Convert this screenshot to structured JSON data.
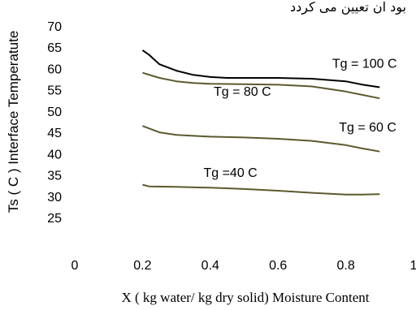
{
  "top_text": "بود ان تعیین می کردد",
  "chart_data": {
    "type": "line",
    "ylabel": "Ts ( C )  Interface Temperatute",
    "xlabel": "X ( kg water/ kg dry solid)    Moisture Content",
    "xlim": [
      0,
      1
    ],
    "ylim": [
      25,
      70
    ],
    "x_ticks": [
      "0",
      "0.2",
      "0.4",
      "0.6",
      "0.8",
      "1"
    ],
    "y_ticks": [
      "25",
      "30",
      "35",
      "40",
      "45",
      "50",
      "55",
      "60",
      "65",
      "70"
    ],
    "grid": false,
    "series": [
      {
        "name": "Tg = 100 C",
        "color": "#000000",
        "x": [
          0.2,
          0.22,
          0.25,
          0.3,
          0.35,
          0.4,
          0.45,
          0.5,
          0.6,
          0.7,
          0.8,
          0.85,
          0.9
        ],
        "y": [
          64.3,
          63.2,
          61.0,
          59.5,
          58.5,
          58.0,
          57.8,
          57.8,
          57.8,
          57.6,
          57.0,
          56.2,
          55.6
        ]
      },
      {
        "name": "Tg = 80 C",
        "color": "#5c5a2c",
        "x": [
          0.2,
          0.25,
          0.3,
          0.35,
          0.4,
          0.5,
          0.6,
          0.7,
          0.8,
          0.85,
          0.9
        ],
        "y": [
          59.0,
          57.8,
          57.0,
          56.6,
          56.4,
          56.3,
          56.2,
          55.8,
          54.6,
          53.8,
          53.0
        ]
      },
      {
        "name": "Tg = 60 C",
        "color": "#5c5a2c",
        "x": [
          0.2,
          0.25,
          0.3,
          0.4,
          0.5,
          0.6,
          0.7,
          0.8,
          0.85,
          0.9
        ],
        "y": [
          46.5,
          45.0,
          44.4,
          44.0,
          43.8,
          43.5,
          43.0,
          42.0,
          41.2,
          40.5
        ]
      },
      {
        "name": "Tg =40 C",
        "color": "#5c5a2c",
        "x": [
          0.2,
          0.22,
          0.3,
          0.4,
          0.5,
          0.6,
          0.7,
          0.8,
          0.85,
          0.9
        ],
        "y": [
          32.7,
          32.3,
          32.2,
          32.0,
          31.7,
          31.3,
          30.8,
          30.4,
          30.4,
          30.5
        ]
      }
    ],
    "annotations": [
      {
        "text": "Tg = 100 C",
        "x": 0.76,
        "y": 60.2
      },
      {
        "text": "Tg = 80 C",
        "x": 0.41,
        "y": 53.6
      },
      {
        "text": "Tg = 60 C",
        "x": 0.78,
        "y": 45.2
      },
      {
        "text": "Tg =40 C",
        "x": 0.38,
        "y": 34.5
      }
    ]
  }
}
